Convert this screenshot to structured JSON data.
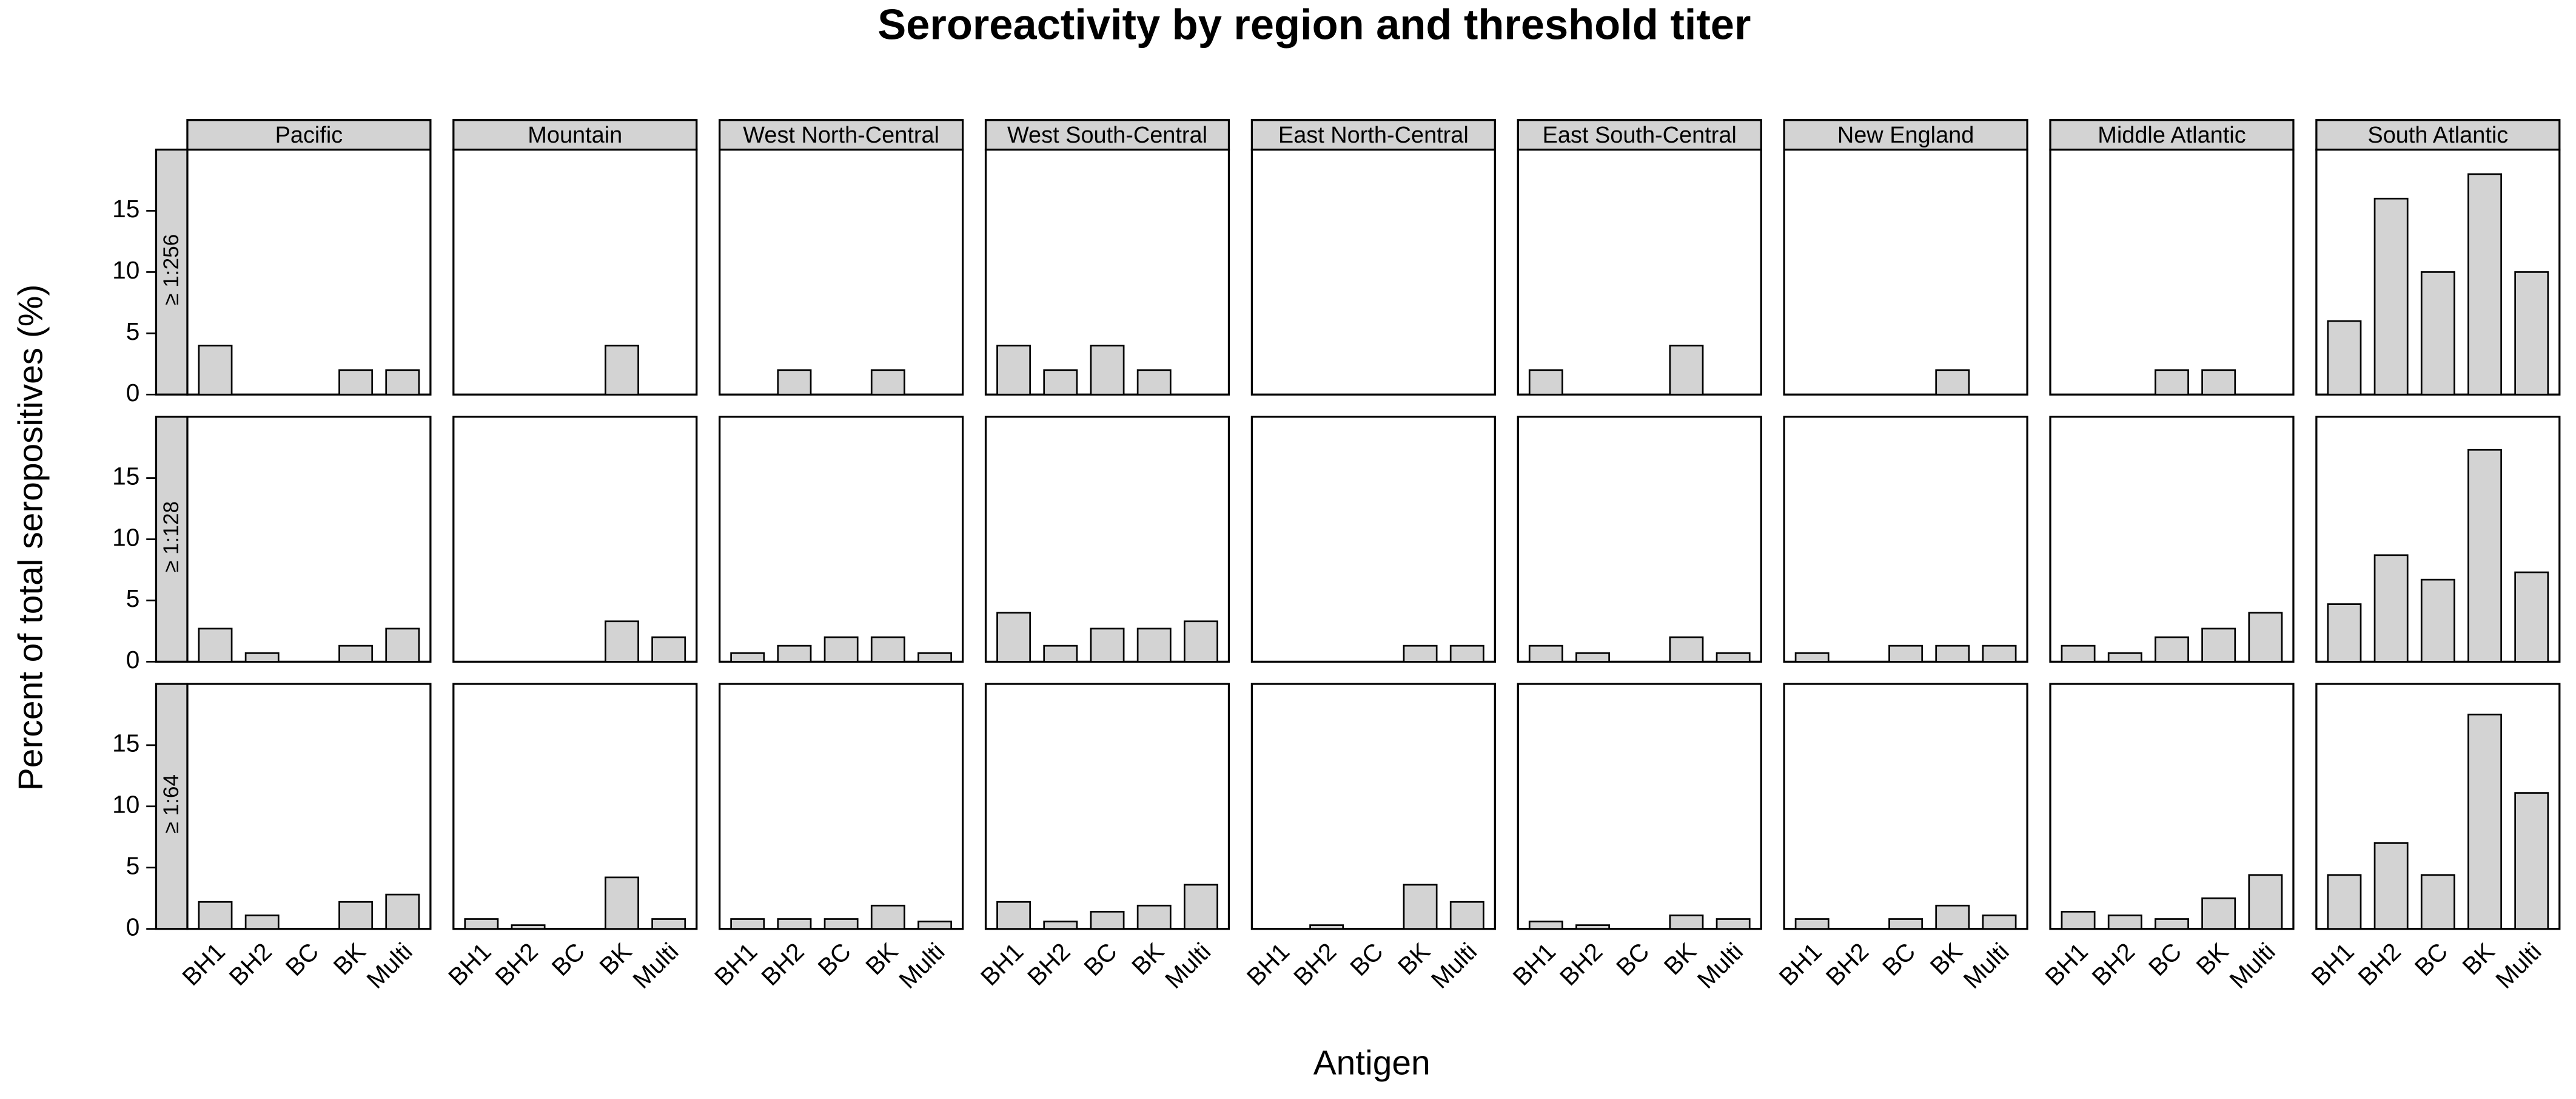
{
  "chart_data": {
    "type": "bar",
    "title": "Seroreactivity by region and threshold titer",
    "xlabel": "Antigen",
    "ylabel": "Percent of total seropositives (%)",
    "categories": [
      "BH1",
      "BH2",
      "BC",
      "BK",
      "Multi"
    ],
    "regions": [
      "Pacific",
      "Mountain",
      "West North-Central",
      "West South-Central",
      "East North-Central",
      "East South-Central",
      "New England",
      "Middle Atlantic",
      "South Atlantic"
    ],
    "thresholds": [
      "≥ 1:256",
      "≥ 1:128",
      "≥ 1:64"
    ],
    "color": "#d3d3d3",
    "ylim": [
      0,
      20
    ],
    "yticks": [
      0,
      5,
      10,
      15
    ],
    "panels": [
      [
        [
          4,
          0,
          0,
          2,
          2
        ],
        [
          0,
          0,
          0,
          4,
          0
        ],
        [
          0,
          2,
          0,
          2,
          0
        ],
        [
          4,
          2,
          4,
          2,
          0
        ],
        [
          0,
          0,
          0,
          0,
          0
        ],
        [
          2,
          0,
          0,
          4,
          0
        ],
        [
          0,
          0,
          0,
          2,
          0
        ],
        [
          0,
          0,
          2,
          2,
          0
        ],
        [
          6,
          16,
          10,
          18,
          10
        ]
      ],
      [
        [
          2.7,
          0.7,
          0,
          1.3,
          2.7
        ],
        [
          0,
          0,
          0,
          3.3,
          2
        ],
        [
          0.7,
          1.3,
          2,
          2,
          0.7
        ],
        [
          4,
          1.3,
          2.7,
          2.7,
          3.3
        ],
        [
          0,
          0,
          0,
          1.3,
          1.3
        ],
        [
          1.3,
          0.7,
          0,
          2,
          0.7
        ],
        [
          0.7,
          0,
          1.3,
          1.3,
          1.3
        ],
        [
          1.3,
          0.7,
          2,
          2.7,
          4
        ],
        [
          4.7,
          8.7,
          6.7,
          17.3,
          7.3
        ]
      ],
      [
        [
          2.2,
          1.1,
          0,
          2.2,
          2.8
        ],
        [
          0.8,
          0.3,
          0,
          4.2,
          0.8
        ],
        [
          0.8,
          0.8,
          0.8,
          1.9,
          0.6
        ],
        [
          2.2,
          0.6,
          1.4,
          1.9,
          3.6
        ],
        [
          0,
          0.3,
          0,
          3.6,
          2.2
        ],
        [
          0.6,
          0.3,
          0,
          1.1,
          0.8
        ],
        [
          0.8,
          0,
          0.8,
          1.9,
          1.1
        ],
        [
          1.4,
          1.1,
          0.8,
          2.5,
          4.4
        ],
        [
          4.4,
          7,
          4.4,
          17.5,
          11.1
        ]
      ]
    ]
  }
}
